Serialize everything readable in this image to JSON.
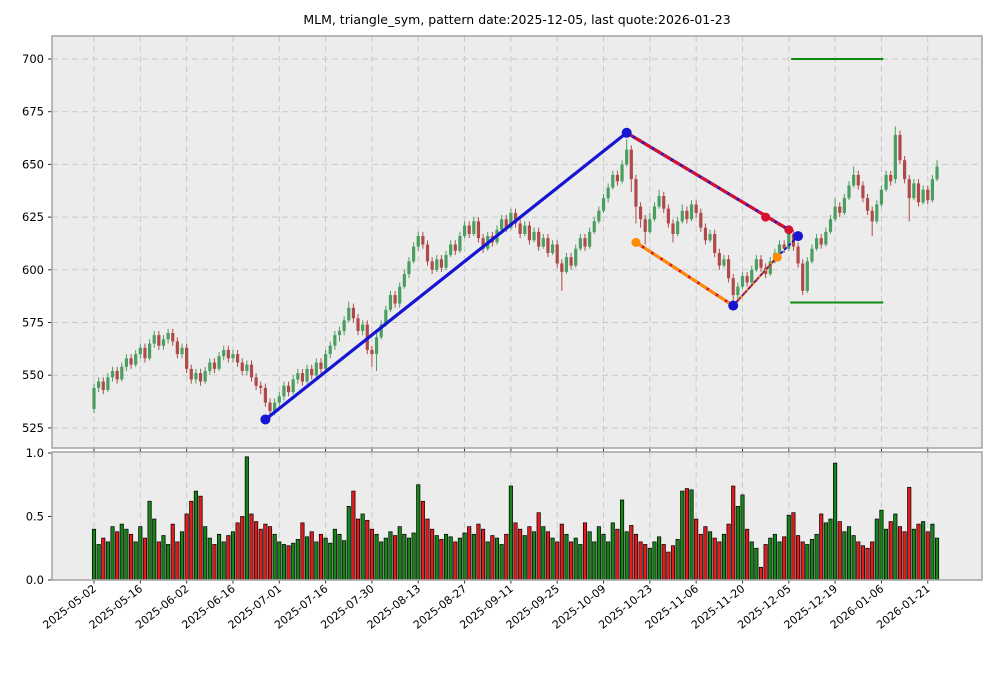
{
  "title": "MLM, triangle_sym, pattern date:2025-12-05, last quote:2026-01-23",
  "colors": {
    "up": "#4a9e5f",
    "down": "#b04a4a",
    "vol_up": "#168416",
    "vol_down": "#e31b1b",
    "vol_edge": "#000000",
    "grid": "#c9c9c9",
    "panel_bg": "#ececec",
    "panel_border": "#a8a8a8",
    "text": "#000000",
    "blue": "#1515d3",
    "red": "#d41230",
    "orange": "#ff8c00",
    "green_level": "#0b8a0b"
  },
  "chart_data": {
    "type": "candlestick_with_volume",
    "symbol": "MLM",
    "pattern": "triangle_sym",
    "pattern_date": "2025-12-05",
    "last_quote_date": "2026-01-23",
    "price_axis": {
      "ticks": [
        525,
        550,
        575,
        600,
        625,
        650,
        675,
        700
      ],
      "ylim": [
        516,
        711
      ]
    },
    "volume_axis": {
      "ticks": [
        "0.0",
        "0.5",
        "1.0"
      ],
      "ylim": [
        0,
        1.0
      ]
    },
    "x_tick_step": 10,
    "x_tick_labels": [
      "2025-05-02",
      "2025-05-16",
      "2025-06-02",
      "2025-06-16",
      "2025-07-01",
      "2025-07-16",
      "2025-07-30",
      "2025-08-13",
      "2025-08-27",
      "2025-09-11",
      "2025-09-25",
      "2025-10-09",
      "2025-10-23",
      "2025-11-06",
      "2025-11-20",
      "2025-12-05",
      "2025-12-19",
      "2026-01-06",
      "2026-01-21"
    ],
    "candles_format": [
      "open",
      "high",
      "low",
      "close",
      "volume_normalized"
    ],
    "candles": [
      [
        534,
        546,
        532,
        544,
        0.4
      ],
      [
        544,
        549,
        542,
        547,
        0.28
      ],
      [
        547,
        549,
        541,
        543,
        0.33
      ],
      [
        543,
        551,
        542,
        549,
        0.3
      ],
      [
        549,
        554,
        547,
        552,
        0.42
      ],
      [
        552,
        554,
        546,
        548,
        0.38
      ],
      [
        548,
        556,
        547,
        554,
        0.44
      ],
      [
        554,
        560,
        552,
        558,
        0.4
      ],
      [
        558,
        560,
        553,
        555,
        0.36
      ],
      [
        555,
        562,
        554,
        560,
        0.3
      ],
      [
        560,
        565,
        558,
        563,
        0.42
      ],
      [
        563,
        565,
        556,
        558,
        0.33
      ],
      [
        558,
        567,
        557,
        565,
        0.62
      ],
      [
        565,
        571,
        563,
        569,
        0.48
      ],
      [
        569,
        571,
        562,
        564,
        0.3
      ],
      [
        564,
        569,
        562,
        567,
        0.35
      ],
      [
        567,
        572,
        565,
        570,
        0.28
      ],
      [
        570,
        572,
        564,
        566,
        0.44
      ],
      [
        566,
        568,
        558,
        560,
        0.3
      ],
      [
        560,
        565,
        558,
        563,
        0.38
      ],
      [
        563,
        565,
        551,
        553,
        0.52
      ],
      [
        553,
        555,
        546,
        548,
        0.62
      ],
      [
        548,
        553,
        546,
        551,
        0.7
      ],
      [
        551,
        553,
        545,
        547,
        0.66
      ],
      [
        547,
        554,
        546,
        552,
        0.42
      ],
      [
        552,
        558,
        550,
        556,
        0.33
      ],
      [
        556,
        558,
        551,
        553,
        0.28
      ],
      [
        553,
        561,
        552,
        559,
        0.36
      ],
      [
        559,
        564,
        557,
        562,
        0.3
      ],
      [
        562,
        564,
        556,
        558,
        0.35
      ],
      [
        558,
        562,
        556,
        560,
        0.38
      ],
      [
        560,
        562,
        554,
        556,
        0.45
      ],
      [
        556,
        558,
        550,
        552,
        0.5
      ],
      [
        552,
        557,
        550,
        555,
        0.97
      ],
      [
        555,
        557,
        547,
        549,
        0.52
      ],
      [
        549,
        551,
        543,
        545,
        0.46
      ],
      [
        545,
        547,
        541,
        544,
        0.4
      ],
      [
        544,
        546,
        535,
        537,
        0.44
      ],
      [
        537,
        539,
        529,
        533,
        0.42
      ],
      [
        533,
        539,
        531,
        537,
        0.36
      ],
      [
        537,
        542,
        535,
        540,
        0.3
      ],
      [
        540,
        547,
        538,
        545,
        0.28
      ],
      [
        545,
        547,
        540,
        542,
        0.27
      ],
      [
        542,
        550,
        541,
        548,
        0.29
      ],
      [
        548,
        553,
        546,
        551,
        0.32
      ],
      [
        551,
        553,
        545,
        547,
        0.45
      ],
      [
        547,
        555,
        546,
        553,
        0.34
      ],
      [
        553,
        555,
        548,
        550,
        0.38
      ],
      [
        550,
        558,
        549,
        556,
        0.3
      ],
      [
        556,
        558,
        551,
        553,
        0.36
      ],
      [
        553,
        562,
        552,
        560,
        0.33
      ],
      [
        560,
        566,
        558,
        564,
        0.29
      ],
      [
        564,
        571,
        562,
        569,
        0.4
      ],
      [
        569,
        573,
        566,
        571,
        0.36
      ],
      [
        571,
        578,
        569,
        576,
        0.31
      ],
      [
        576,
        585,
        575,
        582,
        0.58
      ],
      [
        582,
        584,
        575,
        577,
        0.7
      ],
      [
        577,
        579,
        569,
        571,
        0.48
      ],
      [
        571,
        576,
        569,
        574,
        0.52
      ],
      [
        574,
        576,
        560,
        562,
        0.47
      ],
      [
        562,
        564,
        554,
        560,
        0.4
      ],
      [
        560,
        570,
        552,
        568,
        0.36
      ],
      [
        568,
        576,
        567,
        574,
        0.3
      ],
      [
        574,
        583,
        573,
        581,
        0.33
      ],
      [
        581,
        590,
        580,
        588,
        0.38
      ],
      [
        588,
        590,
        582,
        584,
        0.35
      ],
      [
        584,
        594,
        582,
        592,
        0.42
      ],
      [
        592,
        600,
        591,
        598,
        0.36
      ],
      [
        598,
        606,
        596,
        604,
        0.33
      ],
      [
        604,
        613,
        603,
        611,
        0.37
      ],
      [
        611,
        618,
        609,
        616,
        0.75
      ],
      [
        616,
        618,
        610,
        612,
        0.62
      ],
      [
        612,
        614,
        602,
        604,
        0.48
      ],
      [
        604,
        606,
        598,
        600,
        0.4
      ],
      [
        600,
        607,
        599,
        605,
        0.35
      ],
      [
        605,
        607,
        599,
        601,
        0.32
      ],
      [
        601,
        609,
        600,
        607,
        0.36
      ],
      [
        607,
        614,
        606,
        612,
        0.34
      ],
      [
        612,
        614,
        607,
        609,
        0.3
      ],
      [
        609,
        618,
        608,
        616,
        0.33
      ],
      [
        616,
        623,
        615,
        621,
        0.37
      ],
      [
        621,
        623,
        615,
        617,
        0.42
      ],
      [
        617,
        625,
        616,
        623,
        0.36
      ],
      [
        623,
        625,
        613,
        615,
        0.44
      ],
      [
        615,
        617,
        608,
        610,
        0.4
      ],
      [
        610,
        618,
        609,
        616,
        0.3
      ],
      [
        616,
        618,
        611,
        613,
        0.35
      ],
      [
        613,
        621,
        612,
        619,
        0.33
      ],
      [
        619,
        626,
        618,
        624,
        0.28
      ],
      [
        624,
        626,
        618,
        620,
        0.36
      ],
      [
        620,
        629,
        619,
        627,
        0.74
      ],
      [
        627,
        629,
        620,
        622,
        0.45
      ],
      [
        622,
        624,
        615,
        617,
        0.4
      ],
      [
        617,
        623,
        616,
        621,
        0.35
      ],
      [
        621,
        623,
        612,
        614,
        0.42
      ],
      [
        614,
        620,
        613,
        618,
        0.38
      ],
      [
        618,
        620,
        609,
        611,
        0.53
      ],
      [
        611,
        617,
        610,
        615,
        0.42
      ],
      [
        615,
        617,
        606,
        608,
        0.38
      ],
      [
        608,
        614,
        607,
        612,
        0.33
      ],
      [
        612,
        614,
        601,
        603,
        0.3
      ],
      [
        603,
        605,
        590,
        599,
        0.44
      ],
      [
        599,
        608,
        598,
        606,
        0.36
      ],
      [
        606,
        608,
        600,
        602,
        0.3
      ],
      [
        602,
        612,
        601,
        610,
        0.33
      ],
      [
        610,
        617,
        609,
        615,
        0.28
      ],
      [
        615,
        617,
        609,
        611,
        0.45
      ],
      [
        611,
        620,
        610,
        618,
        0.38
      ],
      [
        618,
        625,
        617,
        623,
        0.3
      ],
      [
        623,
        630,
        622,
        628,
        0.42
      ],
      [
        628,
        636,
        627,
        634,
        0.36
      ],
      [
        634,
        641,
        632,
        639,
        0.3
      ],
      [
        639,
        647,
        638,
        645,
        0.45
      ],
      [
        645,
        647,
        640,
        642,
        0.4
      ],
      [
        642,
        652,
        641,
        650,
        0.63
      ],
      [
        650,
        662,
        649,
        657,
        0.38
      ],
      [
        657,
        659,
        637,
        643,
        0.43
      ],
      [
        643,
        645,
        622,
        630,
        0.36
      ],
      [
        630,
        632,
        620,
        624,
        0.3
      ],
      [
        624,
        626,
        612,
        618,
        0.28
      ],
      [
        618,
        627,
        617,
        624,
        0.25
      ],
      [
        624,
        632,
        623,
        630,
        0.3
      ],
      [
        630,
        638,
        629,
        635,
        0.34
      ],
      [
        635,
        637,
        627,
        629,
        0.28
      ],
      [
        629,
        631,
        620,
        622,
        0.22
      ],
      [
        622,
        624,
        613,
        617,
        0.27
      ],
      [
        617,
        625,
        616,
        623,
        0.32
      ],
      [
        623,
        631,
        622,
        628,
        0.7
      ],
      [
        628,
        630,
        622,
        624,
        0.72
      ],
      [
        624,
        633,
        623,
        631,
        0.71
      ],
      [
        631,
        633,
        625,
        627,
        0.48
      ],
      [
        627,
        629,
        618,
        620,
        0.36
      ],
      [
        620,
        622,
        612,
        614,
        0.42
      ],
      [
        614,
        619,
        613,
        617,
        0.38
      ],
      [
        617,
        619,
        606,
        608,
        0.33
      ],
      [
        608,
        610,
        600,
        602,
        0.3
      ],
      [
        602,
        607,
        601,
        605,
        0.36
      ],
      [
        605,
        607,
        594,
        596,
        0.44
      ],
      [
        596,
        598,
        582,
        588,
        0.74
      ],
      [
        588,
        594,
        586,
        592,
        0.58
      ],
      [
        592,
        599,
        591,
        597,
        0.67
      ],
      [
        597,
        599,
        592,
        594,
        0.4
      ],
      [
        594,
        602,
        593,
        600,
        0.3
      ],
      [
        600,
        607,
        599,
        605,
        0.25
      ],
      [
        605,
        607,
        599,
        601,
        0.1
      ],
      [
        601,
        603,
        596,
        598,
        0.28
      ],
      [
        598,
        606,
        597,
        604,
        0.33
      ],
      [
        604,
        610,
        603,
        608,
        0.36
      ],
      [
        608,
        614,
        607,
        612,
        0.3
      ],
      [
        612,
        614,
        608,
        610,
        0.34
      ],
      [
        610,
        619,
        609,
        617,
        0.51
      ],
      [
        617,
        619,
        609,
        611,
        0.53
      ],
      [
        611,
        613,
        601,
        603,
        0.35
      ],
      [
        603,
        605,
        588,
        590,
        0.3
      ],
      [
        590,
        606,
        589,
        604,
        0.28
      ],
      [
        604,
        612,
        603,
        610,
        0.32
      ],
      [
        610,
        617,
        609,
        615,
        0.36
      ],
      [
        615,
        617,
        610,
        612,
        0.52
      ],
      [
        612,
        620,
        611,
        618,
        0.45
      ],
      [
        618,
        626,
        617,
        624,
        0.48
      ],
      [
        624,
        634,
        623,
        630,
        0.92
      ],
      [
        630,
        632,
        625,
        627,
        0.46
      ],
      [
        627,
        636,
        626,
        634,
        0.38
      ],
      [
        634,
        642,
        633,
        640,
        0.42
      ],
      [
        640,
        649,
        639,
        645,
        0.35
      ],
      [
        645,
        647,
        638,
        640,
        0.3
      ],
      [
        640,
        642,
        632,
        634,
        0.27
      ],
      [
        634,
        636,
        626,
        628,
        0.25
      ],
      [
        628,
        630,
        616,
        623,
        0.3
      ],
      [
        623,
        633,
        622,
        631,
        0.48
      ],
      [
        631,
        640,
        630,
        638,
        0.55
      ],
      [
        638,
        647,
        637,
        645,
        0.4
      ],
      [
        645,
        647,
        640,
        642,
        0.46
      ],
      [
        643,
        668,
        641,
        664,
        0.52
      ],
      [
        664,
        666,
        650,
        652,
        0.42
      ],
      [
        652,
        654,
        641,
        643,
        0.38
      ],
      [
        643,
        645,
        623,
        634,
        0.73
      ],
      [
        634,
        643,
        633,
        641,
        0.4
      ],
      [
        641,
        643,
        630,
        632,
        0.44
      ],
      [
        632,
        640,
        631,
        638,
        0.46
      ],
      [
        638,
        640,
        631,
        633,
        0.38
      ],
      [
        633,
        645,
        632,
        643,
        0.44
      ],
      [
        643,
        652,
        642,
        649,
        0.33
      ]
    ],
    "pattern_lines": [
      {
        "name": "uptrend-line",
        "points": [
          [
            37,
            529
          ],
          [
            115,
            665
          ]
        ],
        "style": "solid",
        "colors": [
          "#1515d3"
        ],
        "width": 3.2
      },
      {
        "name": "triangle-upper-line",
        "points": [
          [
            115,
            665
          ],
          [
            150,
            619
          ]
        ],
        "style": "solid+dash",
        "colors": [
          "#1515d3",
          "#d41230"
        ],
        "width": 3.2
      },
      {
        "name": "triangle-lower-line",
        "points": [
          [
            117,
            613
          ],
          [
            138,
            583
          ]
        ],
        "style": "solid+dash",
        "colors": [
          "#d41230",
          "#ff8c00"
        ],
        "width": 3.0
      },
      {
        "name": "lower-extension-line",
        "points": [
          [
            138,
            583
          ],
          [
            147.5,
            606
          ]
        ],
        "style": "solid+dash+dots",
        "colors": [
          "#d41230",
          "#ff8c00",
          "#1515d3"
        ],
        "width": 2.2
      },
      {
        "name": "breakout-dotted-line",
        "points": [
          [
            147.5,
            606
          ],
          [
            152,
            616
          ]
        ],
        "style": "dotted",
        "colors": [
          "#1515d3"
        ],
        "width": 1.8
      }
    ],
    "markers": [
      {
        "name": "pattern-start-dot",
        "x": 37,
        "price": 529,
        "color": "#1515d3",
        "r": 5
      },
      {
        "name": "pattern-apex-dot",
        "x": 115,
        "price": 665,
        "color": "#1515d3",
        "r": 5
      },
      {
        "name": "pattern-low-dot",
        "x": 138,
        "price": 583,
        "color": "#1515d3",
        "r": 5
      },
      {
        "name": "breakout-dot",
        "x": 152,
        "price": 616,
        "color": "#1515d3",
        "r": 5
      },
      {
        "name": "upper-line-dot",
        "x": 145,
        "price": 625,
        "color": "#d41230",
        "r": 4.5
      },
      {
        "name": "upper-line-end-dot",
        "x": 150,
        "price": 619,
        "color": "#d41230",
        "r": 4.5
      },
      {
        "name": "lower-line-start-dot",
        "x": 117,
        "price": 613,
        "color": "#ff8c00",
        "r": 4.5
      },
      {
        "name": "lower-extension-dot",
        "x": 147.5,
        "price": 606,
        "color": "#ff8c00",
        "r": 4.5
      }
    ],
    "levels": [
      {
        "name": "upper-target-level",
        "price": 700,
        "from": 150.5,
        "to": 170.4,
        "color": "#0b8a0b"
      },
      {
        "name": "lower-support-level",
        "price": 584.5,
        "from": 150.3,
        "to": 170.4,
        "color": "#0b8a0b"
      }
    ]
  }
}
